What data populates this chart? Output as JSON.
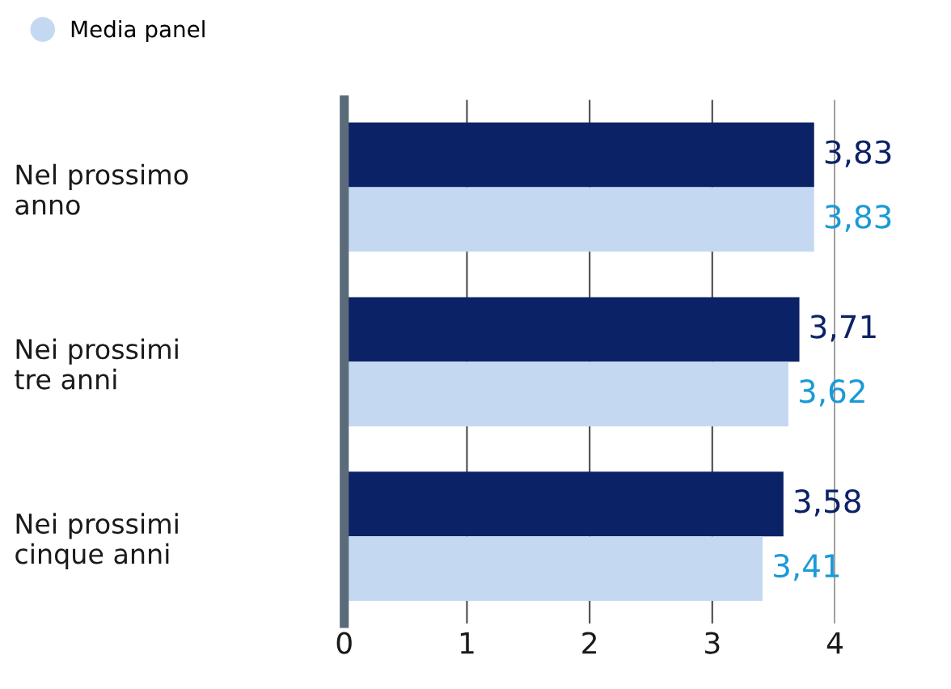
{
  "chart_data": {
    "type": "bar",
    "orientation": "horizontal",
    "categories": [
      "Nel prossimo\nanno",
      "Nei prossimi\ntre anni",
      "Nei prossimi\ncinque anni"
    ],
    "series": [
      {
        "color": "#0c2266",
        "values": [
          3.83,
          3.71,
          3.58
        ],
        "value_labels": [
          "3,83",
          "3,71",
          "3,58"
        ]
      },
      {
        "name": "Media panel",
        "color": "#c4d9f1",
        "values": [
          3.83,
          3.62,
          3.41
        ],
        "value_labels": [
          "3,83",
          "3,62",
          "3,41"
        ]
      }
    ],
    "xlim": [
      0,
      4
    ],
    "xticks": [
      0,
      1,
      2,
      3,
      4
    ],
    "grid": "x",
    "legend": "top left"
  }
}
